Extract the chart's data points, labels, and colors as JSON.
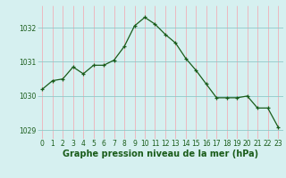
{
  "x": [
    0,
    1,
    2,
    3,
    4,
    5,
    6,
    7,
    8,
    9,
    10,
    11,
    12,
    13,
    14,
    15,
    16,
    17,
    18,
    19,
    20,
    21,
    22,
    23
  ],
  "y": [
    1030.2,
    1030.45,
    1030.5,
    1030.85,
    1030.65,
    1030.9,
    1030.9,
    1031.05,
    1031.45,
    1032.05,
    1032.3,
    1032.1,
    1031.8,
    1031.55,
    1031.1,
    1030.75,
    1030.35,
    1029.95,
    1029.95,
    1029.95,
    1030.0,
    1029.65,
    1029.65,
    1029.1
  ],
  "line_color": "#1a5c1a",
  "marker": "+",
  "bg_color": "#d6f0f0",
  "grid_v_color": "#f0b0b8",
  "grid_h_color": "#90c8c8",
  "xlabel": "Graphe pression niveau de la mer (hPa)",
  "xlabel_color": "#1a5c1a",
  "tick_color": "#1a5c1a",
  "ylim": [
    1028.75,
    1032.65
  ],
  "yticks": [
    1029,
    1030,
    1031,
    1032
  ],
  "xlim": [
    -0.5,
    23.5
  ],
  "xticks": [
    0,
    1,
    2,
    3,
    4,
    5,
    6,
    7,
    8,
    9,
    10,
    11,
    12,
    13,
    14,
    15,
    16,
    17,
    18,
    19,
    20,
    21,
    22,
    23
  ],
  "tick_fontsize": 5.5,
  "xlabel_fontsize": 7.0
}
